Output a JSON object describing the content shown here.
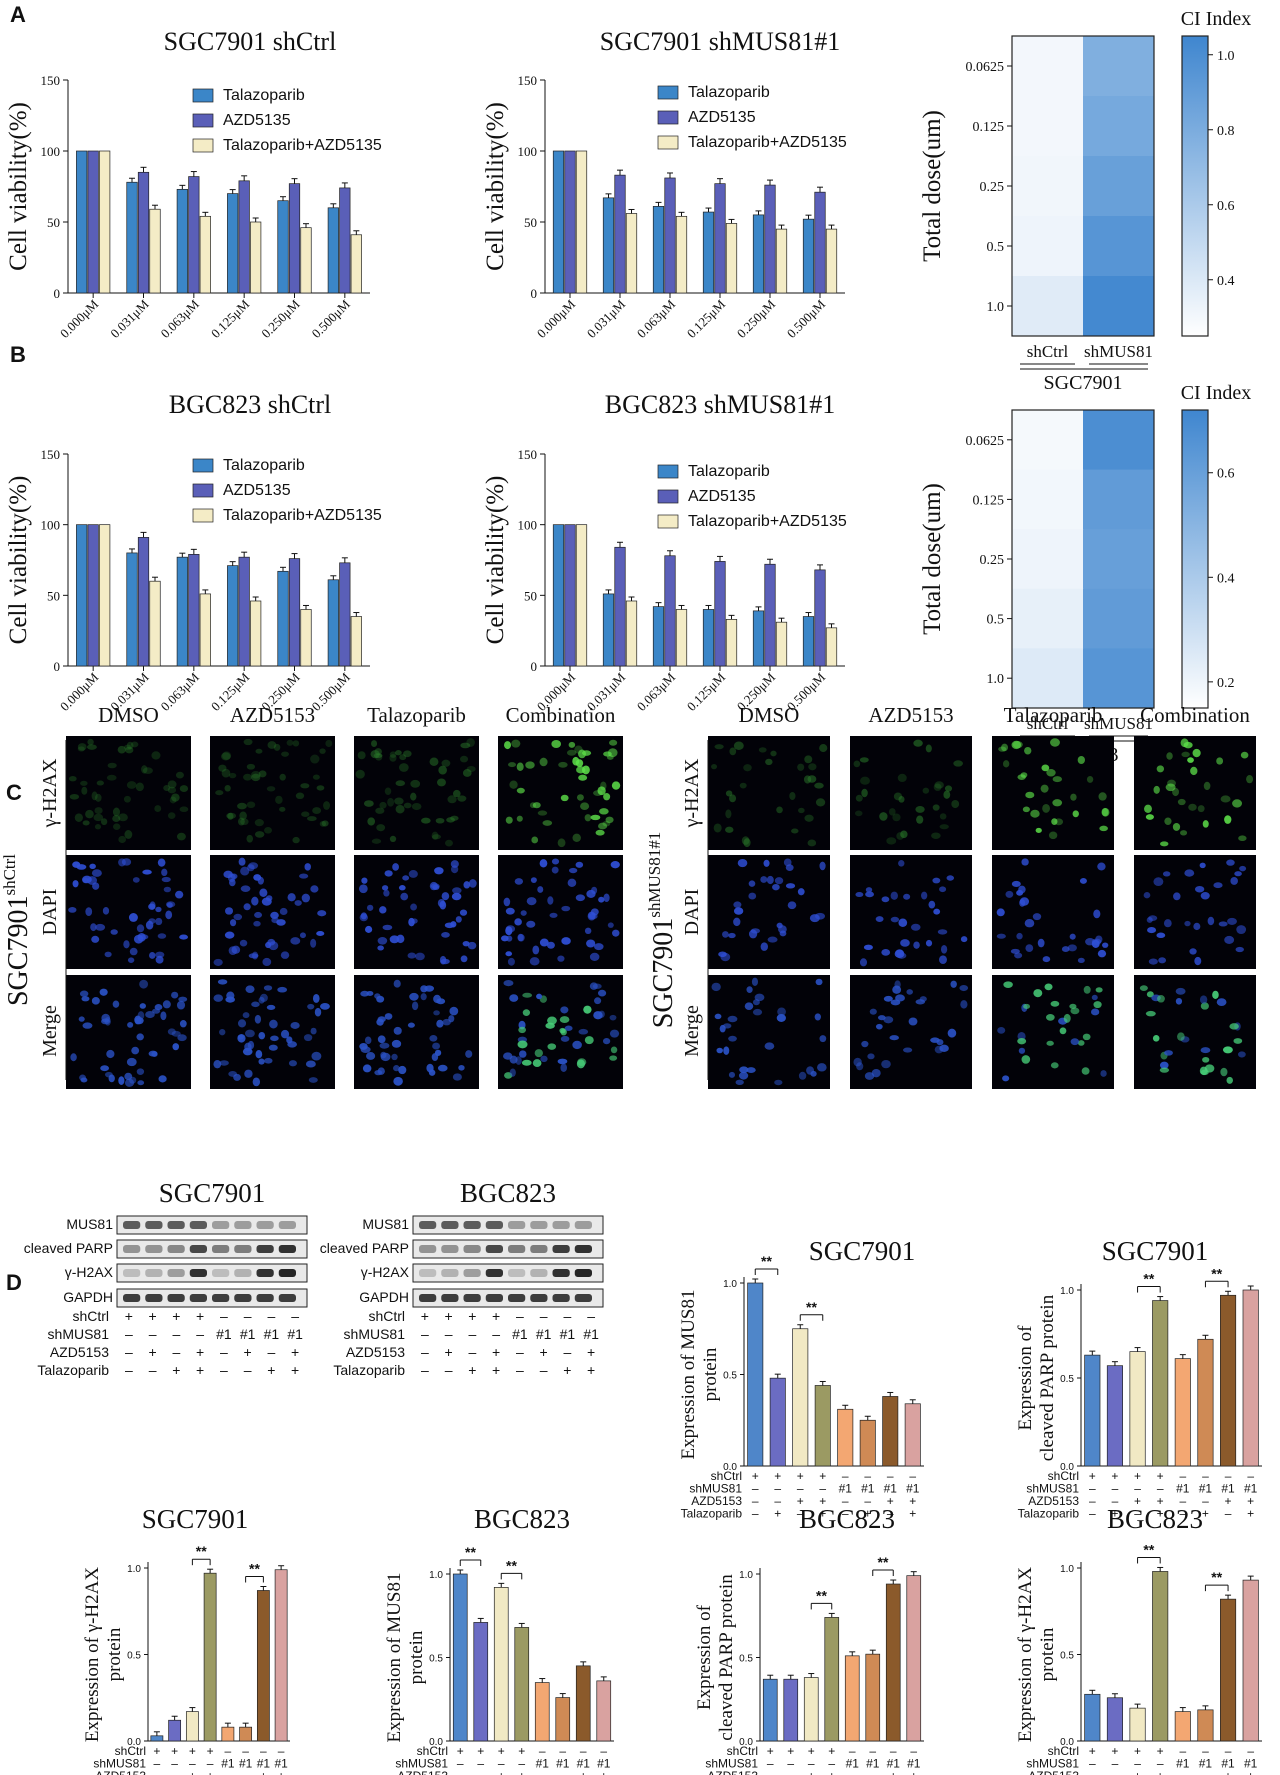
{
  "panels": {
    "A": "A",
    "B": "B",
    "C": "C",
    "D": "D"
  },
  "colors": {
    "talazoparib": "#3b86c8",
    "azd": "#5a5fb8",
    "combo": "#f4ecc6",
    "heat_low": "#ffffff",
    "heat_high": "#3f86cf",
    "wb_c1": "#4f86c9",
    "wb_c2": "#6b6cc3",
    "wb_c3": "#f1e9c4",
    "wb_c4": "#9b9a63",
    "wb_c5": "#f3a772",
    "wb_c6": "#cf8a55",
    "wb_c7": "#8b5a2b",
    "wb_c8": "#d9a2a0"
  },
  "chart_data": [
    {
      "id": "A1",
      "type": "bar",
      "title": "SGC7901 shCtrl",
      "ylabel": "Cell viability(%)",
      "ylim": [
        0,
        150
      ],
      "yticks": [
        "0",
        "50",
        "100",
        "150"
      ],
      "categories": [
        "0.000μM",
        "0.031μM",
        "0.063μM",
        "0.125μM",
        "0.250μM",
        "0.500μM"
      ],
      "series": [
        {
          "name": "Talazoparib",
          "values": [
            100,
            78,
            73,
            70,
            65,
            60
          ]
        },
        {
          "name": "AZD5135",
          "values": [
            100,
            85,
            82,
            79,
            77,
            74
          ]
        },
        {
          "name": "Talazoparib+AZD5135",
          "values": [
            100,
            59,
            54,
            50,
            46,
            41
          ]
        }
      ]
    },
    {
      "id": "A2",
      "type": "bar",
      "title": "SGC7901 shMUS81#1",
      "ylabel": "Cell viability(%)",
      "ylim": [
        0,
        150
      ],
      "yticks": [
        "0",
        "50",
        "100",
        "150"
      ],
      "categories": [
        "0.000μM",
        "0.031μM",
        "0.063μM",
        "0.125μM",
        "0.250μM",
        "0.500μM"
      ],
      "series": [
        {
          "name": "Talazoparib",
          "values": [
            100,
            67,
            61,
            57,
            55,
            52
          ]
        },
        {
          "name": "AZD5135",
          "values": [
            100,
            83,
            81,
            77,
            76,
            71
          ]
        },
        {
          "name": "Talazoparib+AZD5135",
          "values": [
            100,
            56,
            54,
            49,
            45,
            45
          ]
        }
      ]
    },
    {
      "id": "A3",
      "type": "heatmap",
      "title": "CI Index",
      "ylabel": "Total dose(um)",
      "rows": [
        "0.0625",
        "0.125",
        "0.25",
        "0.5",
        "1.0"
      ],
      "columns": [
        "shCtrl",
        "shMUS81"
      ],
      "group": "SGC7901",
      "values": [
        [
          0.3,
          0.78
        ],
        [
          0.3,
          0.82
        ],
        [
          0.31,
          0.88
        ],
        [
          0.32,
          0.95
        ],
        [
          0.38,
          1.03
        ]
      ],
      "range": [
        0.25,
        1.05
      ],
      "colorbar_ticks": [
        "1.0",
        "0.8",
        "0.6",
        "0.4"
      ]
    },
    {
      "id": "B1",
      "type": "bar",
      "title": "BGC823 shCtrl",
      "ylabel": "Cell viability(%)",
      "ylim": [
        0,
        150
      ],
      "yticks": [
        "0",
        "50",
        "100",
        "150"
      ],
      "categories": [
        "0.000μM",
        "0.031μM",
        "0.063μM",
        "0.125μM",
        "0.250μM",
        "0.500μM"
      ],
      "series": [
        {
          "name": "Talazoparib",
          "values": [
            100,
            80,
            77,
            71,
            67,
            61
          ]
        },
        {
          "name": "AZD5135",
          "values": [
            100,
            91,
            79,
            77,
            76,
            73
          ]
        },
        {
          "name": "Talazoparib+AZD5135",
          "values": [
            100,
            60,
            51,
            46,
            40,
            35
          ]
        }
      ]
    },
    {
      "id": "B2",
      "type": "bar",
      "title": "BGC823 shMUS81#1",
      "ylabel": "Cell viability(%)",
      "ylim": [
        0,
        150
      ],
      "yticks": [
        "0",
        "50",
        "100",
        "150"
      ],
      "categories": [
        "0.000μM",
        "0.031μM",
        "0.063μM",
        "0.125μM",
        "0.250μM",
        "0.500μM"
      ],
      "series": [
        {
          "name": "Talazoparib",
          "values": [
            100,
            51,
            42,
            40,
            39,
            35
          ]
        },
        {
          "name": "AZD5135",
          "values": [
            100,
            84,
            78,
            74,
            72,
            68
          ]
        },
        {
          "name": "Talazoparib+AZD5135",
          "values": [
            100,
            46,
            40,
            33,
            31,
            27
          ]
        }
      ]
    },
    {
      "id": "B3",
      "type": "heatmap",
      "title": "CI Index",
      "ylabel": "Total dose(um)",
      "rows": [
        "0.0625",
        "0.125",
        "0.25",
        "0.5",
        "1.0"
      ],
      "columns": [
        "shCtrl",
        "shMUS81"
      ],
      "group": "BGC823",
      "values": [
        [
          0.18,
          0.68
        ],
        [
          0.19,
          0.62
        ],
        [
          0.2,
          0.6
        ],
        [
          0.22,
          0.62
        ],
        [
          0.25,
          0.65
        ]
      ],
      "range": [
        0.15,
        0.72
      ],
      "colorbar_ticks": [
        "0.6",
        "0.4",
        "0.2"
      ]
    },
    {
      "id": "D1",
      "type": "bar",
      "title": "SGC7901",
      "ylabel": [
        "Expression of MUS81",
        "protein"
      ],
      "ylim": [
        0,
        1.0
      ],
      "yticks": [
        "0.0",
        "0.5",
        "1.0"
      ],
      "values": [
        1.0,
        0.48,
        0.75,
        0.44,
        0.31,
        0.25,
        0.38,
        0.34
      ],
      "sig": [
        {
          "a": 0,
          "b": 1,
          "label": "**"
        },
        {
          "a": 2,
          "b": 3,
          "label": "**"
        }
      ]
    },
    {
      "id": "D2",
      "type": "bar",
      "title": "SGC7901",
      "ylabel": [
        "Expression of",
        "cleaved PARP protein"
      ],
      "ylim": [
        0,
        1.0
      ],
      "yticks": [
        "0.0",
        "0.5",
        "1.0"
      ],
      "values": [
        0.63,
        0.57,
        0.65,
        0.94,
        0.61,
        0.72,
        0.97,
        1.0
      ],
      "sig": [
        {
          "a": 2,
          "b": 3,
          "label": "**"
        },
        {
          "a": 5,
          "b": 6,
          "label": "**"
        }
      ]
    },
    {
      "id": "D3",
      "type": "bar",
      "title": "SGC7901",
      "ylabel": [
        "Expression of γ-H2AX",
        "protein"
      ],
      "ylim": [
        0,
        1.0
      ],
      "yticks": [
        "0.0",
        "0.5",
        "1.0"
      ],
      "values": [
        0.03,
        0.12,
        0.17,
        0.97,
        0.08,
        0.08,
        0.87,
        0.99
      ],
      "sig": [
        {
          "a": 2,
          "b": 3,
          "label": "**"
        },
        {
          "a": 5,
          "b": 6,
          "label": "**"
        }
      ]
    },
    {
      "id": "D4",
      "type": "bar",
      "title": "BGC823",
      "ylabel": [
        "Expression of MUS81",
        "protein"
      ],
      "ylim": [
        0,
        1.0
      ],
      "yticks": [
        "0.0",
        "0.5",
        "1.0"
      ],
      "values": [
        1.0,
        0.71,
        0.92,
        0.68,
        0.35,
        0.26,
        0.45,
        0.36
      ],
      "sig": [
        {
          "a": 0,
          "b": 1,
          "label": "**"
        },
        {
          "a": 2,
          "b": 3,
          "label": "**"
        }
      ]
    },
    {
      "id": "D5",
      "type": "bar",
      "title": "BGC823",
      "ylabel": [
        "Expression of",
        "cleaved PARP protein"
      ],
      "ylim": [
        0,
        1.0
      ],
      "yticks": [
        "0.0",
        "0.5",
        "1.0"
      ],
      "values": [
        0.37,
        0.37,
        0.38,
        0.74,
        0.51,
        0.52,
        0.94,
        0.99
      ],
      "sig": [
        {
          "a": 2,
          "b": 3,
          "label": "**"
        },
        {
          "a": 5,
          "b": 6,
          "label": "**"
        }
      ]
    },
    {
      "id": "D6",
      "type": "bar",
      "title": "BGC823",
      "ylabel": [
        "Expression of γ-H2AX",
        "protein"
      ],
      "ylim": [
        0,
        1.0
      ],
      "yticks": [
        "0.0",
        "0.5",
        "1.0"
      ],
      "values": [
        0.27,
        0.25,
        0.19,
        0.98,
        0.17,
        0.18,
        0.82,
        0.93
      ],
      "sig": [
        {
          "a": 2,
          "b": 3,
          "label": "**"
        },
        {
          "a": 5,
          "b": 6,
          "label": "**"
        }
      ]
    }
  ],
  "panel_c": {
    "columns": [
      "DMSO",
      "AZD5153",
      "Talazoparib",
      "Combination"
    ],
    "rows": [
      "γ-H2AX",
      "DAPI",
      "Merge"
    ],
    "left_label": "SGC7901",
    "left_sup": "shCtrl",
    "right_label": "SGC7901",
    "right_sup": "shMUS81#1"
  },
  "western": {
    "blots": [
      {
        "title": "SGC7901",
        "bands": [
          "MUS81",
          "cleaved PARP",
          "γ-H2AX",
          "GAPDH"
        ]
      },
      {
        "title": "BGC823",
        "bands": [
          "MUS81",
          "cleaved PARP",
          "γ-H2AX",
          "GAPDH"
        ]
      }
    ]
  },
  "conditions": {
    "labels": [
      "shCtrl",
      "shMUS81",
      "AZD5153",
      "Talazoparib"
    ],
    "shCtrl": [
      "+",
      "+",
      "+",
      "+",
      "–",
      "–",
      "–",
      "–"
    ],
    "shMUS81": [
      "–",
      "–",
      "–",
      "–",
      "#1",
      "#1",
      "#1",
      "#1"
    ],
    "AZD5153": [
      "–",
      "+",
      "–",
      "+",
      "–",
      "+",
      "–",
      "+"
    ],
    "Talazoparib": [
      "–",
      "–",
      "+",
      "+",
      "–",
      "–",
      "+",
      "+"
    ]
  }
}
